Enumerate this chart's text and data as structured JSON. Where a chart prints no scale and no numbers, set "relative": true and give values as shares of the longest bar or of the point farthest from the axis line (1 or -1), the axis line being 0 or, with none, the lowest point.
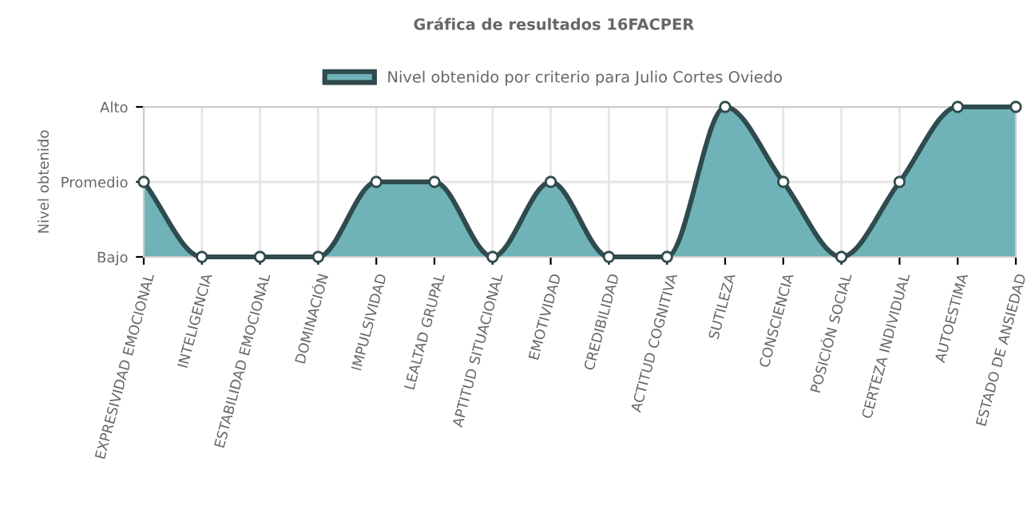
{
  "chart_data": {
    "type": "area",
    "title": "Gráfica de resultados 16FACPER",
    "ylabel": "Nivel obtenido",
    "categories": [
      "EXPRESIVIDAD EMOCIONAL",
      "INTELIGENCIA",
      "ESTABILIDAD EMOCIONAL",
      "DOMINACIÓN",
      "IMPULSIVIDAD",
      "LEALTAD GRUPAL",
      "APTITUD SITUACIONAL",
      "EMOTIVIDAD",
      "CREDIBILIDAD",
      "ACTITUD COGNITIVA",
      "SUTILEZA",
      "CONSCIENCIA",
      "POSICIÓN SOCIAL",
      "CERTEZA INDIVIDUAL",
      "AUTOESTIMA",
      "ESTADO DE ANSIEDAD"
    ],
    "series": [
      {
        "name": "Nivel obtenido por criterio para Julio Cortes Oviedo",
        "color": "#6fb3b8",
        "values": [
          0.5,
          0,
          0,
          0,
          0.5,
          0.5,
          0,
          0.5,
          0,
          0,
          1,
          0.5,
          0,
          0.5,
          1,
          1
        ]
      }
    ],
    "relative": true,
    "annotations": [
      "Bajo",
      "Promedio",
      "Alto"
    ],
    "grid": true,
    "legend": "top",
    "marker": "circle",
    "line_style": "solid"
  }
}
